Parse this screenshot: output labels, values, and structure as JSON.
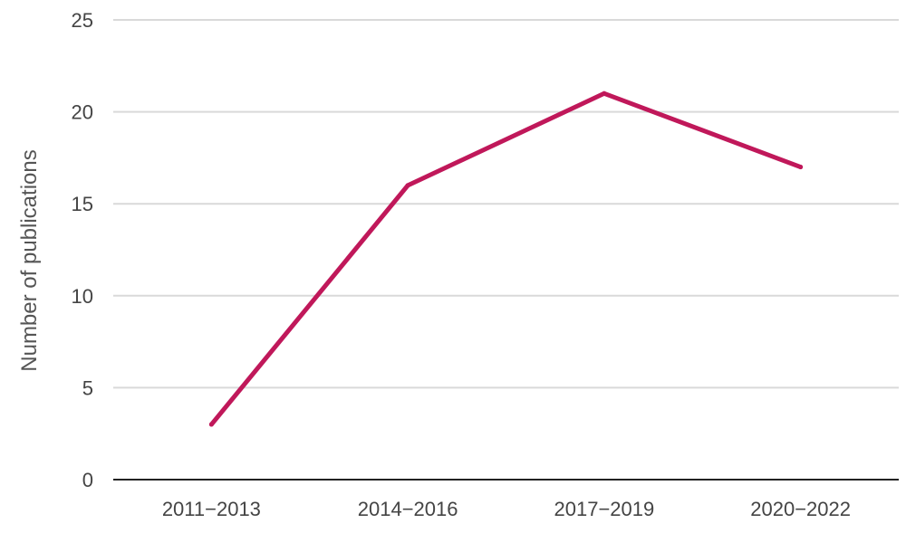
{
  "chart_data": {
    "type": "line",
    "title": "",
    "xlabel": "",
    "ylabel": "Number of publications",
    "categories": [
      "2011−2013",
      "2014−2016",
      "2017−2019",
      "2020−2022"
    ],
    "series": [
      {
        "values": [
          3,
          16,
          21,
          17
        ],
        "color": "#c0185a"
      }
    ],
    "ylim": [
      0,
      25
    ],
    "yticks": [
      0,
      5,
      10,
      15,
      20,
      25
    ],
    "grid": true,
    "legend": "none"
  }
}
